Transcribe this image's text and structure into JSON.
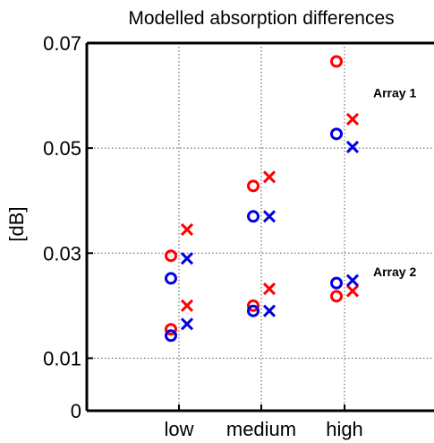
{
  "chart_data": {
    "type": "scatter",
    "title": "Modelled absorption differences",
    "xlabel": "",
    "ylabel": "[dB]",
    "categories": [
      "low",
      "medium",
      "high"
    ],
    "ylim": [
      0,
      0.07
    ],
    "yticks": [
      0,
      0.01,
      0.03,
      0.05,
      0.07
    ],
    "ytick_labels": [
      "0",
      "0.01",
      "0.03",
      "0.05",
      "0.07"
    ],
    "grid": "dotted",
    "colors": {
      "red": "#ff0000",
      "blue": "#0000e0"
    },
    "annotations": [
      {
        "text": "Array 1",
        "category": "high",
        "y": 0.0605
      },
      {
        "text": "Array 2",
        "category": "high",
        "y": 0.0265
      }
    ],
    "series": [
      {
        "array": "Array 1",
        "marker": "circle",
        "color": "red",
        "values": [
          0.0295,
          0.0428,
          0.0665
        ]
      },
      {
        "array": "Array 1",
        "marker": "cross",
        "color": "red",
        "values": [
          0.0345,
          0.0445,
          0.0555
        ]
      },
      {
        "array": "Array 1",
        "marker": "circle",
        "color": "blue",
        "values": [
          0.0252,
          0.037,
          0.0527
        ]
      },
      {
        "array": "Array 1",
        "marker": "cross",
        "color": "blue",
        "values": [
          0.029,
          0.037,
          0.0502
        ]
      },
      {
        "array": "Array 2",
        "marker": "circle",
        "color": "red",
        "values": [
          0.0155,
          0.02,
          0.0218
        ]
      },
      {
        "array": "Array 2",
        "marker": "cross",
        "color": "red",
        "values": [
          0.02,
          0.0232,
          0.0228
        ]
      },
      {
        "array": "Array 2",
        "marker": "circle",
        "color": "blue",
        "values": [
          0.0143,
          0.019,
          0.0243
        ]
      },
      {
        "array": "Array 2",
        "marker": "cross",
        "color": "blue",
        "values": [
          0.0165,
          0.019,
          0.0248
        ]
      }
    ]
  }
}
